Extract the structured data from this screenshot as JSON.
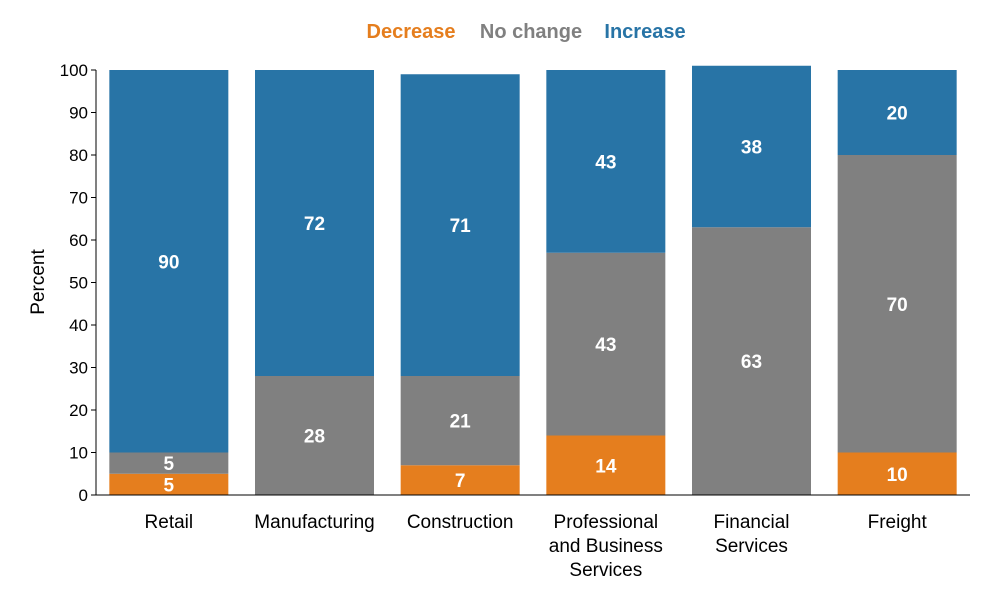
{
  "chart_data": {
    "type": "bar",
    "stacked": true,
    "title": "",
    "xlabel": "",
    "ylabel": "Percent",
    "ylim": [
      0,
      100
    ],
    "yticks": [
      0,
      10,
      20,
      30,
      40,
      50,
      60,
      70,
      80,
      90,
      100
    ],
    "legend_position": "top-center",
    "categories": [
      "Retail",
      "Manufacturing",
      "Construction",
      "Professional and Business Services",
      "Financial Services",
      "Freight"
    ],
    "category_label_lines": [
      [
        "Retail"
      ],
      [
        "Manufacturing"
      ],
      [
        "Construction"
      ],
      [
        "Professional",
        "and Business",
        "Services"
      ],
      [
        "Financial",
        "Services"
      ],
      [
        "Freight"
      ]
    ],
    "series": [
      {
        "name": "Decrease",
        "color": "#E57E1E",
        "values": [
          5,
          0,
          7,
          14,
          0,
          10
        ],
        "labels": [
          "5",
          "",
          "7",
          "14",
          "",
          "10"
        ]
      },
      {
        "name": "No change",
        "color": "#808080",
        "values": [
          5,
          28,
          21,
          43,
          63,
          70
        ],
        "labels": [
          "5",
          "28",
          "21",
          "43",
          "63",
          "70"
        ]
      },
      {
        "name": "Increase",
        "color": "#2874A6",
        "values": [
          90,
          72,
          71,
          43,
          38,
          20
        ],
        "labels": [
          "90",
          "72",
          "71",
          "43",
          "38",
          "20"
        ]
      }
    ]
  }
}
